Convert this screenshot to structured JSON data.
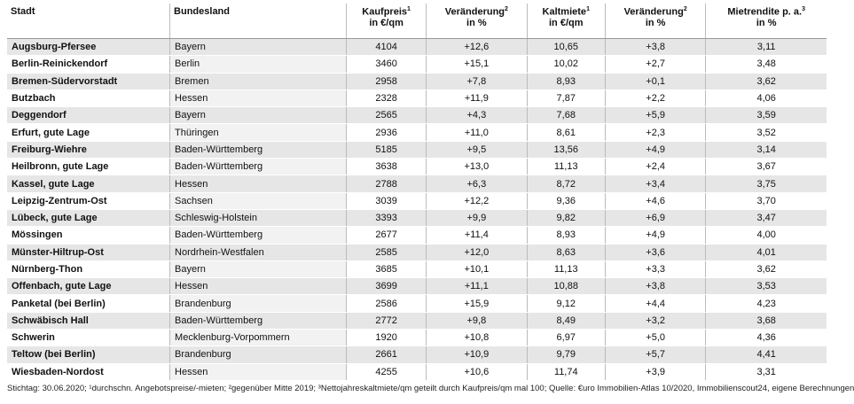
{
  "table": {
    "headers": [
      {
        "label": "Stadt"
      },
      {
        "label": "Bundesland"
      },
      {
        "label": "Kaufpreis",
        "sup": "1",
        "unit": "in €/qm"
      },
      {
        "label": "Veränderung",
        "sup": "2",
        "unit": "in %"
      },
      {
        "label": "Kaltmiete",
        "sup": "1",
        "unit": "in €/qm"
      },
      {
        "label": "Veränderung",
        "sup": "2",
        "unit": "in %"
      },
      {
        "label": "Mietrendite p. a.",
        "sup": "3",
        "unit": "in %"
      }
    ],
    "rows": [
      [
        "Augsburg-Pfersee",
        "Bayern",
        "4104",
        "+12,6",
        "10,65",
        "+3,8",
        "3,11"
      ],
      [
        "Berlin-Reinickendorf",
        "Berlin",
        "3460",
        "+15,1",
        "10,02",
        "+2,7",
        "3,48"
      ],
      [
        "Bremen-Südervorstadt",
        "Bremen",
        "2958",
        "+7,8",
        "8,93",
        "+0,1",
        "3,62"
      ],
      [
        "Butzbach",
        "Hessen",
        "2328",
        "+11,9",
        "7,87",
        "+2,2",
        "4,06"
      ],
      [
        "Deggendorf",
        "Bayern",
        "2565",
        "+4,3",
        "7,68",
        "+5,9",
        "3,59"
      ],
      [
        "Erfurt, gute Lage",
        "Thüringen",
        "2936",
        "+11,0",
        "8,61",
        "+2,3",
        "3,52"
      ],
      [
        "Freiburg-Wiehre",
        "Baden-Württemberg",
        "5185",
        "+9,5",
        "13,56",
        "+4,9",
        "3,14"
      ],
      [
        "Heilbronn, gute Lage",
        "Baden-Württemberg",
        "3638",
        "+13,0",
        "11,13",
        "+2,4",
        "3,67"
      ],
      [
        "Kassel, gute Lage",
        "Hessen",
        "2788",
        "+6,3",
        "8,72",
        "+3,4",
        "3,75"
      ],
      [
        "Leipzig-Zentrum-Ost",
        "Sachsen",
        "3039",
        "+12,2",
        "9,36",
        "+4,6",
        "3,70"
      ],
      [
        "Lübeck, gute Lage",
        "Schleswig-Holstein",
        "3393",
        "+9,9",
        "9,82",
        "+6,9",
        "3,47"
      ],
      [
        "Mössingen",
        "Baden-Württemberg",
        "2677",
        "+11,4",
        "8,93",
        "+4,9",
        "4,00"
      ],
      [
        "Münster-Hiltrup-Ost",
        "Nordrhein-Westfalen",
        "2585",
        "+12,0",
        "8,63",
        "+3,6",
        "4,01"
      ],
      [
        "Nürnberg-Thon",
        "Bayern",
        "3685",
        "+10,1",
        "11,13",
        "+3,3",
        "3,62"
      ],
      [
        "Offenbach, gute Lage",
        "Hessen",
        "3699",
        "+11,1",
        "10,88",
        "+3,8",
        "3,53"
      ],
      [
        "Panketal (bei Berlin)",
        "Brandenburg",
        "2586",
        "+15,9",
        "9,12",
        "+4,4",
        "4,23"
      ],
      [
        "Schwäbisch Hall",
        "Baden-Württemberg",
        "2772",
        "+9,8",
        "8,49",
        "+3,2",
        "3,68"
      ],
      [
        "Schwerin",
        "Mecklenburg-Vorpommern",
        "1920",
        "+10,8",
        "6,97",
        "+5,0",
        "4,36"
      ],
      [
        "Teltow (bei Berlin)",
        "Brandenburg",
        "2661",
        "+10,9",
        "9,79",
        "+5,7",
        "4,41"
      ],
      [
        "Wiesbaden-Nordost",
        "Hessen",
        "4255",
        "+10,6",
        "11,74",
        "+3,9",
        "3,31"
      ]
    ]
  },
  "footnote": "Stichtag: 30.06.2020; ¹durchschn. Angebotspreise/-mieten; ²gegenüber Mitte 2019; ³Nettojahreskaltmiete/qm geteilt durch Kaufpreis/qm mal 100; Quelle: €uro Immobilien-Atlas 10/2020, Immobilienscout24, eigene Berechnungen"
}
